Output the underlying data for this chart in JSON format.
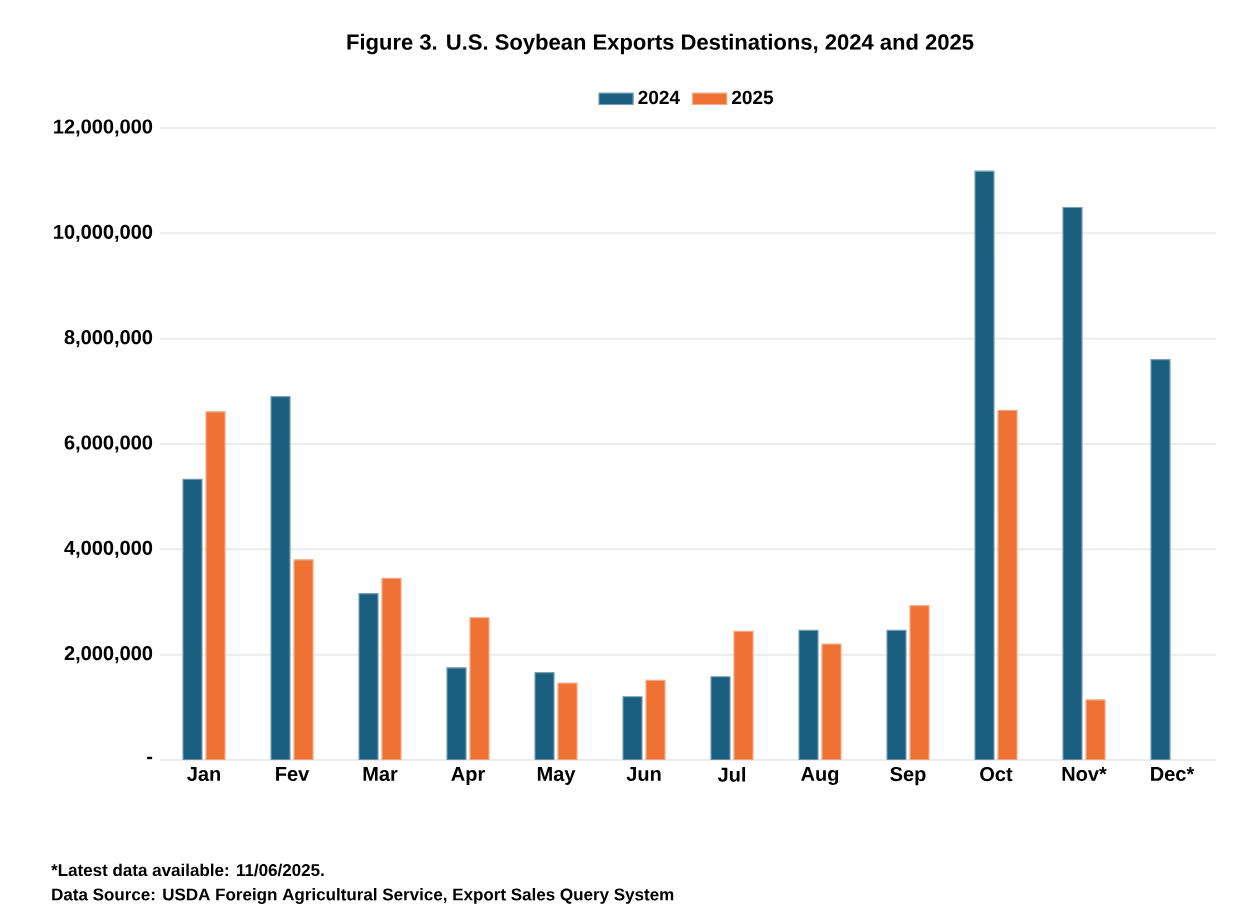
{
  "chart_data": {
    "type": "bar",
    "title": "Figure  3. U.S. Soybean Exports Destinations, 2024 and 2025",
    "categories": [
      "Jan",
      "Fev",
      "Mar",
      "Apr",
      "May",
      "Jun",
      "Jul",
      "Aug",
      "Sep",
      "Oct",
      "Nov*",
      "Dec*"
    ],
    "series": [
      {
        "name": "2024",
        "color": "#1a5f80",
        "values": [
          5330000,
          6900000,
          3160000,
          1750000,
          1660000,
          1200000,
          1580000,
          2460000,
          2460000,
          11180000,
          10490000,
          7600000
        ]
      },
      {
        "name": "2025",
        "color": "#ed7233",
        "values": [
          6610000,
          3800000,
          3450000,
          2700000,
          1460000,
          1510000,
          2440000,
          2200000,
          2930000,
          6640000,
          1140000,
          null
        ]
      }
    ],
    "ylim": [
      0,
      12000000
    ],
    "yticks": [
      {
        "value": 0,
        "label": "-"
      },
      {
        "value": 2000000,
        "label": "2,000,000"
      },
      {
        "value": 4000000,
        "label": "4,000,000"
      },
      {
        "value": 6000000,
        "label": "6,000,000"
      },
      {
        "value": 8000000,
        "label": "8,000,000"
      },
      {
        "value": 10000000,
        "label": "10,000,000"
      },
      {
        "value": 12000000,
        "label": "12,000,000"
      }
    ],
    "grid": "y",
    "legend": "top",
    "annotations": [
      "*Latest data available: 11/06/2025.",
      "Data Source: USDA Foreign Agricultural Service, Export Sales Query System"
    ]
  }
}
